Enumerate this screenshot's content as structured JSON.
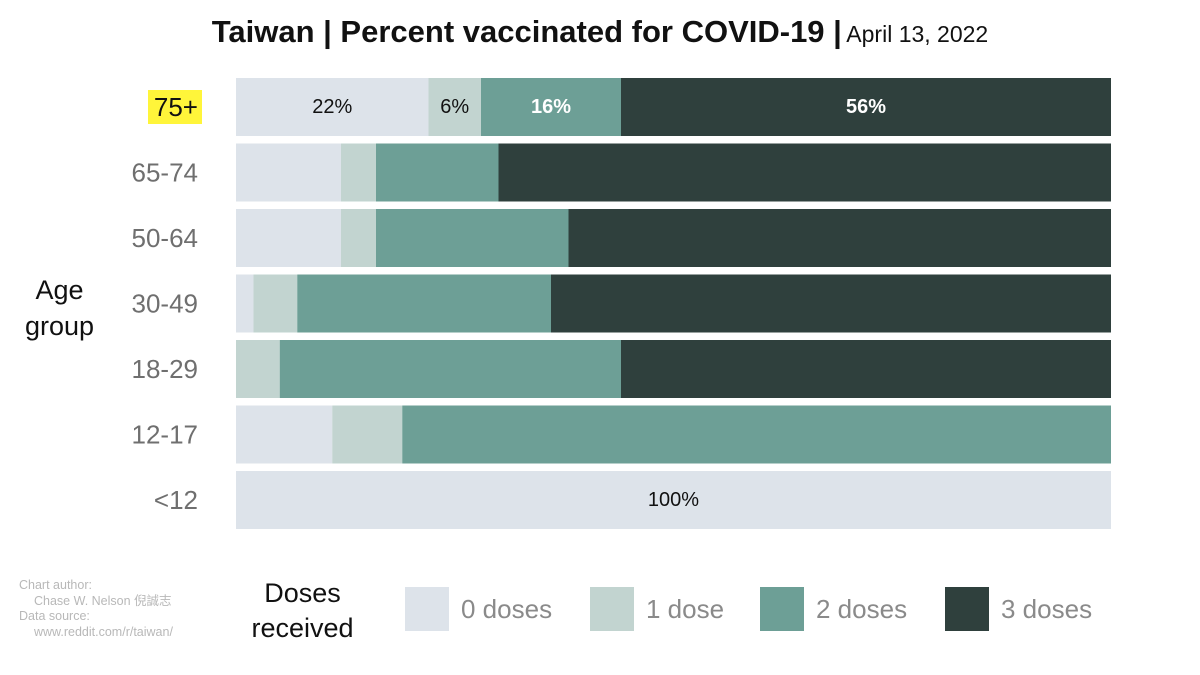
{
  "title": {
    "main": "Taiwan  |  Percent vaccinated for COVID-19  |",
    "date": "April 13, 2022"
  },
  "credit": {
    "line1": "Chart author:",
    "line2": "Chase W. Nelson 倪誠志",
    "line3": "Data source:",
    "line4": "www.reddit.com/r/taiwan/"
  },
  "legend": {
    "title_line1": "Doses",
    "title_line2": "received"
  },
  "chart_data": {
    "type": "bar",
    "orientation": "horizontal",
    "stacked": true,
    "ylabel": "Age group",
    "categories": [
      "75+",
      "65-74",
      "50-64",
      "30-49",
      "18-29",
      "12-17",
      "<12"
    ],
    "highlight_category": "75+",
    "xlim": [
      0,
      100
    ],
    "series": [
      {
        "name": "0 doses",
        "color": "#dde3ea",
        "values": [
          22,
          12,
          12,
          2,
          0,
          11,
          100
        ]
      },
      {
        "name": "1 dose",
        "color": "#c2d4d0",
        "values": [
          6,
          4,
          4,
          5,
          5,
          8,
          0
        ]
      },
      {
        "name": "2 doses",
        "color": "#6d9f96",
        "values": [
          16,
          14,
          22,
          29,
          39,
          81,
          0
        ]
      },
      {
        "name": "3 doses",
        "color": "#2f403d",
        "values": [
          56,
          70,
          62,
          64,
          56,
          0,
          0
        ]
      }
    ],
    "data_labels": [
      {
        "category": "75+",
        "series": "0 doses",
        "text": "22%"
      },
      {
        "category": "75+",
        "series": "1 dose",
        "text": "6%"
      },
      {
        "category": "75+",
        "series": "2 doses",
        "text": "16%"
      },
      {
        "category": "75+",
        "series": "3 doses",
        "text": "56%"
      },
      {
        "category": "<12",
        "series": "0 doses",
        "text": "100%"
      }
    ]
  }
}
